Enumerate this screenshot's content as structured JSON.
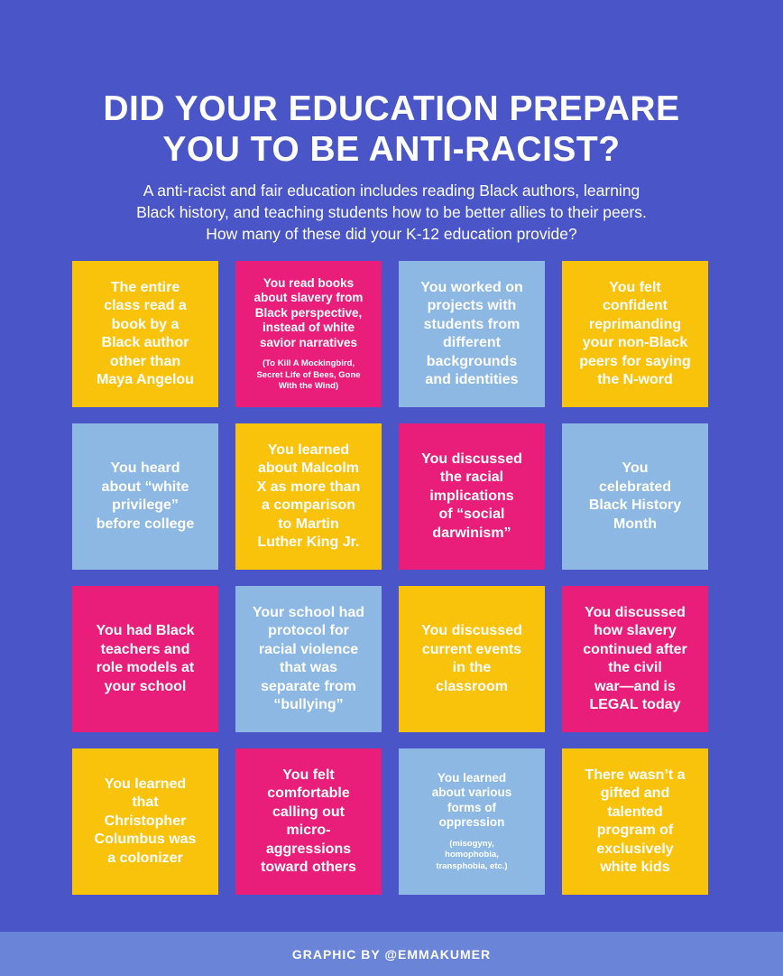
{
  "title": "DID YOUR EDUCATION PREPARE\nYOU TO BE ANTI-RACIST?",
  "subtitle": "A anti-racist and fair education includes reading Black authors, learning\nBlack history, and teaching students how to be better allies to their peers.\nHow many of these did your K-12 education provide?",
  "colors": {
    "background": "#4a55c7",
    "yellow": "#f9c20b",
    "pink": "#e91e7a",
    "blue": "#8db8e4",
    "footer_band": "#6a85d8"
  },
  "cells": [
    {
      "text": "The entire\nclass read a\nbook by a\nBlack author\nother than\nMaya Angelou",
      "color": "yellow",
      "note": ""
    },
    {
      "text": "You read books\nabout slavery from\nBlack perspective,\ninstead of white\nsavior narratives",
      "color": "pink",
      "note": "(To Kill A Mockingbird,\nSecret Life of Bees, Gone\nWith the Wind)"
    },
    {
      "text": "You worked on\nprojects with\nstudents from\ndifferent\nbackgrounds\nand identities",
      "color": "blue",
      "note": ""
    },
    {
      "text": "You felt\nconfident\nreprimanding\nyour  non-Black\npeers for saying\nthe N-word",
      "color": "yellow",
      "note": ""
    },
    {
      "text": "You heard\nabout “white\nprivilege”\nbefore college",
      "color": "blue",
      "note": ""
    },
    {
      "text": "You learned\nabout Malcolm\nX as more than\na comparison\nto Martin\nLuther King Jr.",
      "color": "yellow",
      "note": ""
    },
    {
      "text": "You discussed\nthe racial\nimplications\nof “social\ndarwinism”",
      "color": "pink",
      "note": ""
    },
    {
      "text": "You\ncelebrated\nBlack History\nMonth",
      "color": "blue",
      "note": ""
    },
    {
      "text": "You had Black\nteachers and\nrole models at\nyour school",
      "color": "pink",
      "note": ""
    },
    {
      "text": "Your school had\nprotocol for\nracial violence\nthat was\nseparate from\n“bullying”",
      "color": "blue",
      "note": ""
    },
    {
      "text": "You discussed\ncurrent events\nin the\nclassroom",
      "color": "yellow",
      "note": ""
    },
    {
      "text": "You discussed\nhow slavery\ncontinued after\nthe civil\nwar—and is\nLEGAL today",
      "color": "pink",
      "note": ""
    },
    {
      "text": "You learned\nthat\nChristopher\nColumbus was\na colonizer",
      "color": "yellow",
      "note": ""
    },
    {
      "text": "You felt\ncomfortable\ncalling out\nmicro-\naggressions\ntoward others",
      "color": "pink",
      "note": ""
    },
    {
      "text": "You learned\nabout various\nforms of\noppression",
      "color": "blue",
      "note": "(misogyny,\nhomophobia,\ntransphobia, etc.)"
    },
    {
      "text": "There wasn’t a\ngifted and\ntalented\nprogram of\nexclusively\nwhite kids",
      "color": "yellow",
      "note": ""
    }
  ],
  "footer": {
    "credit": "GRAPHIC BY @EMMAKUMER"
  }
}
